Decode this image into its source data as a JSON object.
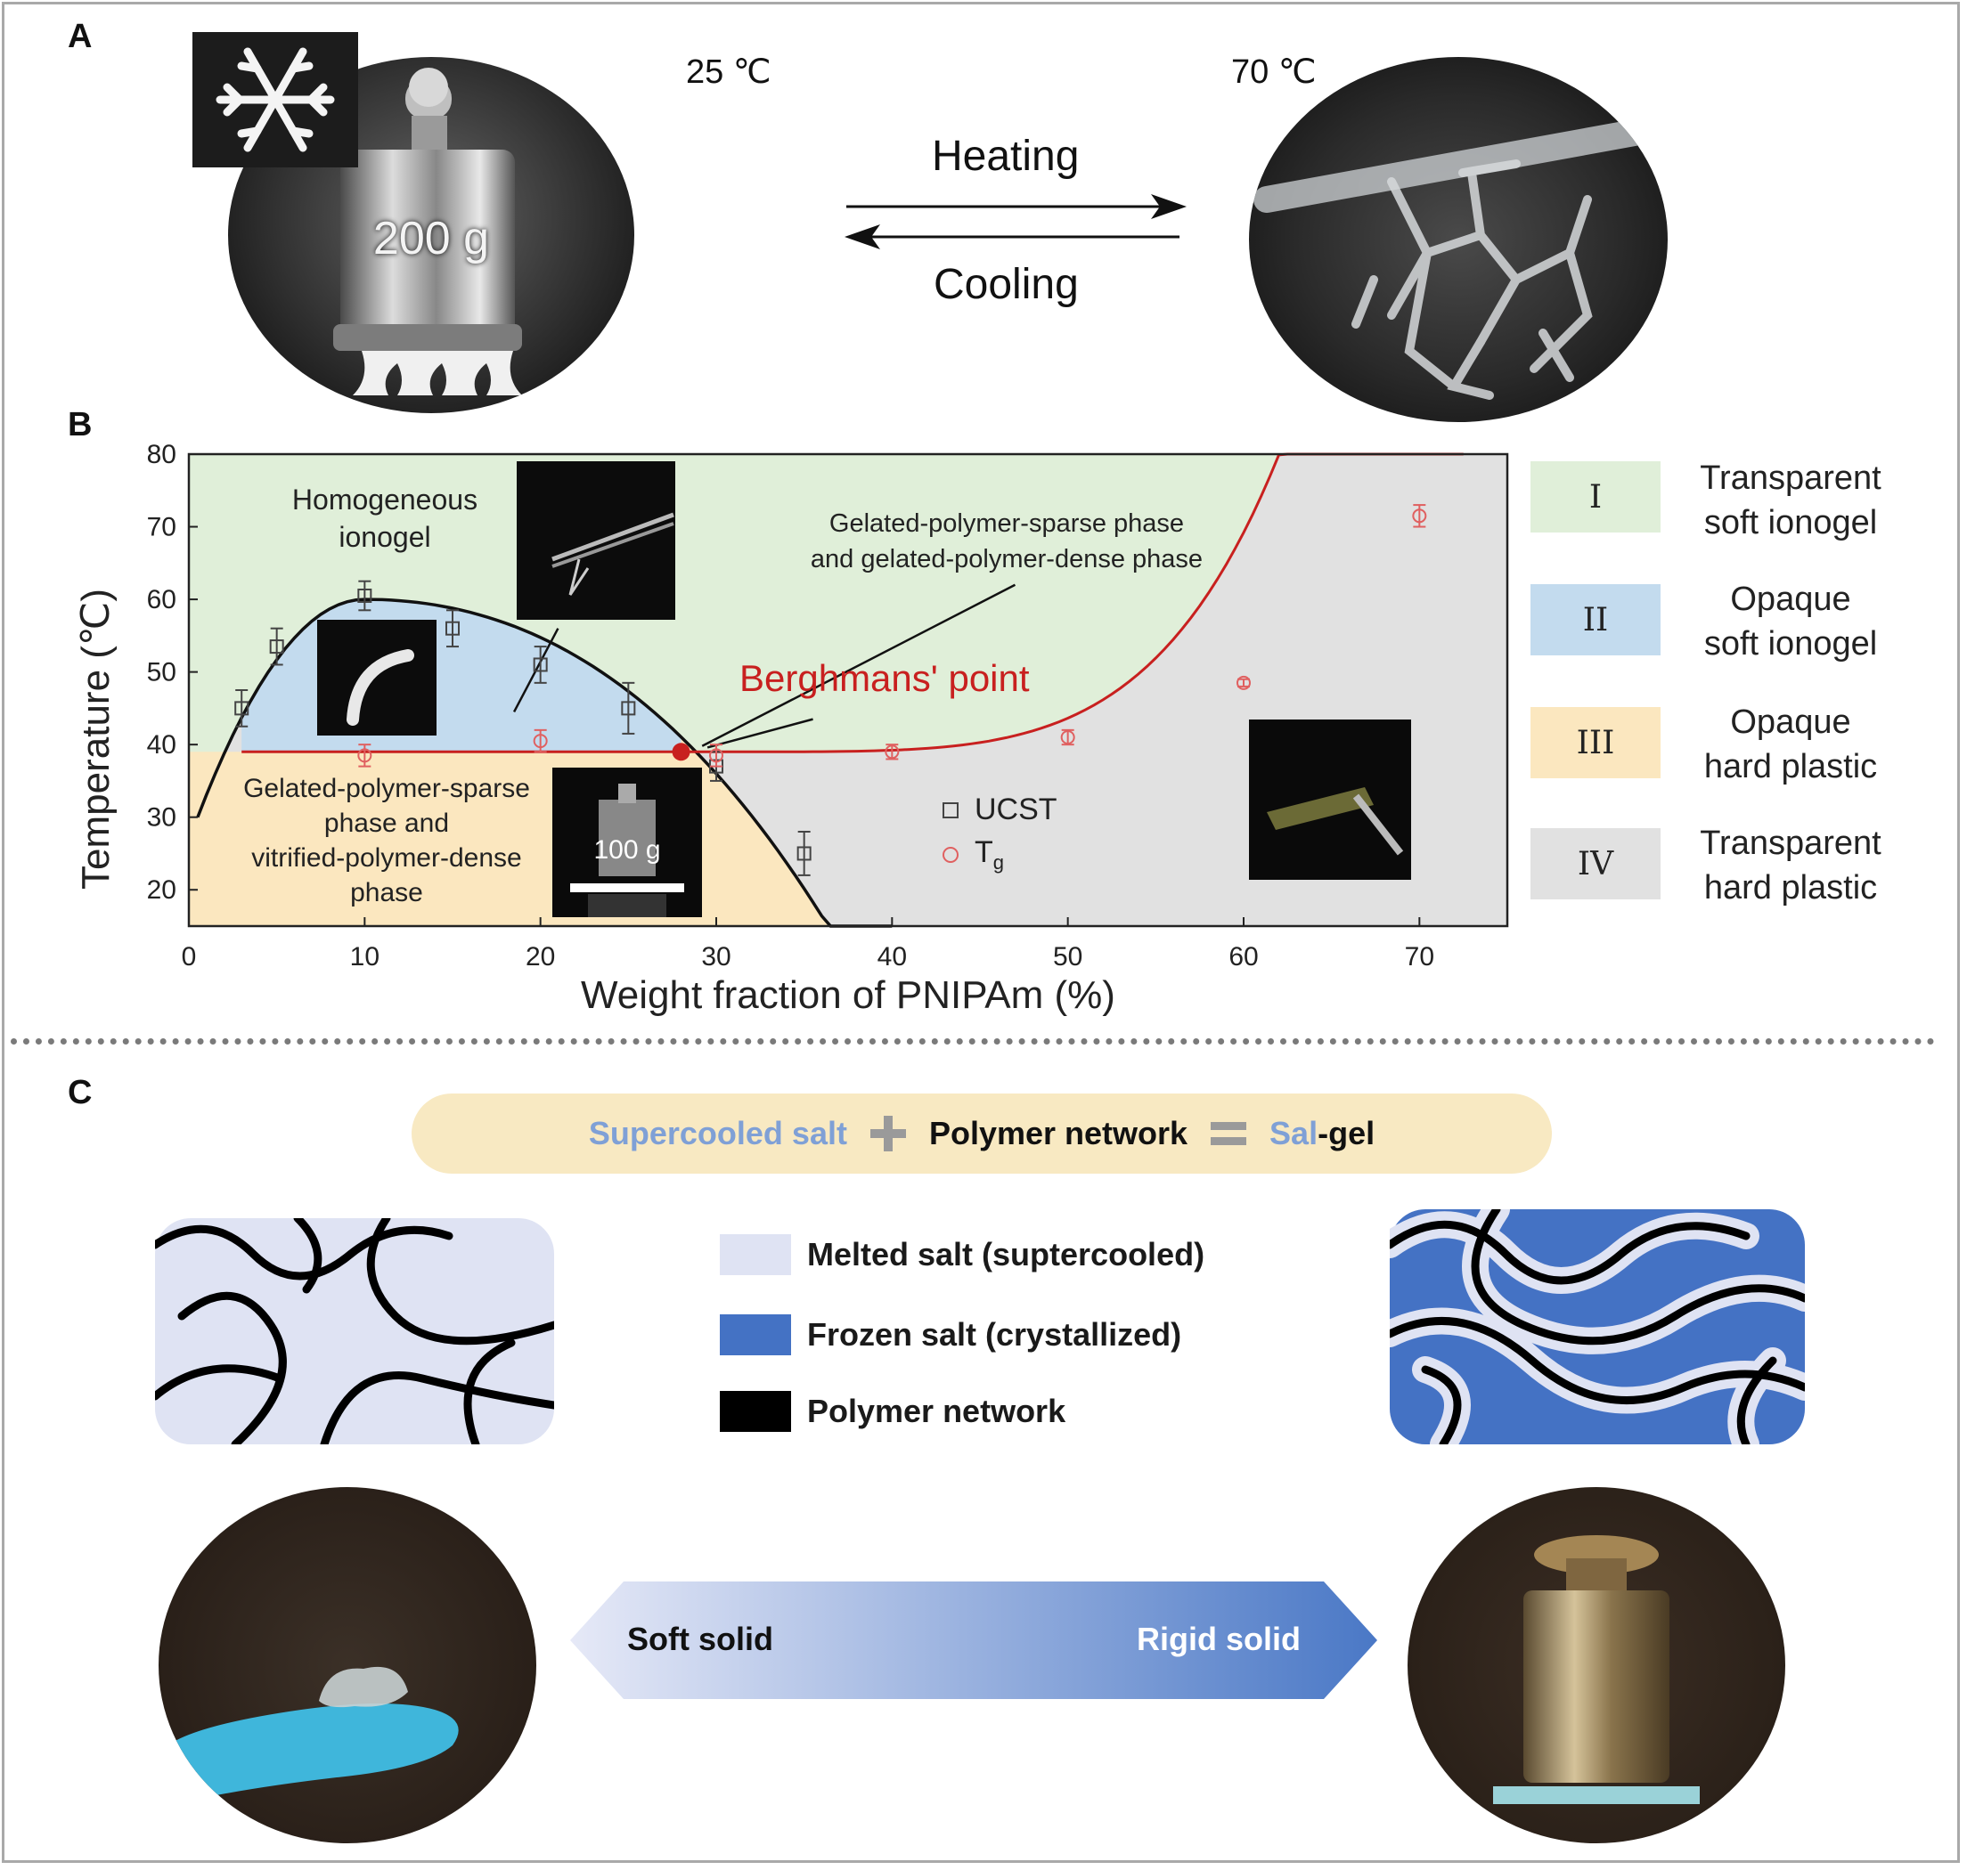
{
  "panels": {
    "a": "A",
    "b": "B",
    "c": "C"
  },
  "panel_a": {
    "temp_left": "25 ℃",
    "temp_right": "70 ℃",
    "weight_label": "200 g",
    "heating": "Heating",
    "cooling": "Cooling"
  },
  "panel_b": {
    "region_labels": {
      "homogeneous": [
        "Homogeneous",
        "ionogel"
      ],
      "sparse_dense": [
        "Gelated-polymer-sparse phase",
        "and gelated-polymer-dense phase"
      ],
      "vitrified": [
        "Gelated-polymer-sparse",
        "phase and",
        "vitrified-polymer-dense",
        "phase"
      ],
      "berghmans": "Berghmans' point",
      "inset_weight": "100 g"
    },
    "legend": [
      {
        "numeral": "I",
        "text": [
          "Transparent",
          "soft ionogel"
        ],
        "color": "#e0efd9"
      },
      {
        "numeral": "II",
        "text": [
          "Opaque",
          "soft ionogel"
        ],
        "color": "#c3dbee"
      },
      {
        "numeral": "III",
        "text": [
          "Opaque",
          "hard plastic"
        ],
        "color": "#fbe7bf"
      },
      {
        "numeral": "IV",
        "text": [
          "Transparent",
          "hard plastic"
        ],
        "color": "#e1e1e1"
      }
    ]
  },
  "chart_data": {
    "type": "scatter",
    "xlabel": "Weight fraction of PNIPAm (%)",
    "ylabel": "Temperature (℃)",
    "xlim": [
      0,
      75
    ],
    "ylim": [
      15,
      80
    ],
    "xticks": [
      0,
      10,
      20,
      30,
      40,
      50,
      60,
      70
    ],
    "yticks": [
      20,
      30,
      40,
      50,
      60,
      70,
      80
    ],
    "series": [
      {
        "name": "UCST",
        "marker": "square",
        "color": "#444444",
        "x": [
          3,
          5,
          10,
          15,
          20,
          25,
          30,
          35
        ],
        "y": [
          45,
          53.5,
          60.5,
          56,
          51,
          45,
          37,
          25
        ],
        "err": [
          2.5,
          2.5,
          2,
          2.5,
          2.5,
          3.5,
          2,
          3
        ]
      },
      {
        "name": "Tg",
        "marker": "circle",
        "color": "#e06060",
        "x": [
          10,
          20,
          30,
          40,
          50,
          60,
          70
        ],
        "y": [
          38.5,
          40.5,
          38.5,
          39,
          41,
          48.5,
          71.5
        ],
        "err": [
          1.5,
          1.5,
          1.5,
          1,
          1,
          0.5,
          1.5
        ]
      }
    ],
    "berghmans_point": {
      "x": 28,
      "y": 39
    }
  },
  "panel_c": {
    "formula": {
      "term1": "Supercooled salt",
      "term2": "Polymer network",
      "result_prefix": "Sal",
      "result_suffix": "-gel"
    },
    "key": [
      {
        "label": "Melted salt (suptercooled)",
        "color": "#dfe3f3"
      },
      {
        "label": "Frozen salt (crystallized)",
        "color": "#4472c4"
      },
      {
        "label": "Polymer network",
        "color": "#000000"
      }
    ],
    "arrow": {
      "left": "Soft solid",
      "right": "Rigid solid"
    }
  }
}
